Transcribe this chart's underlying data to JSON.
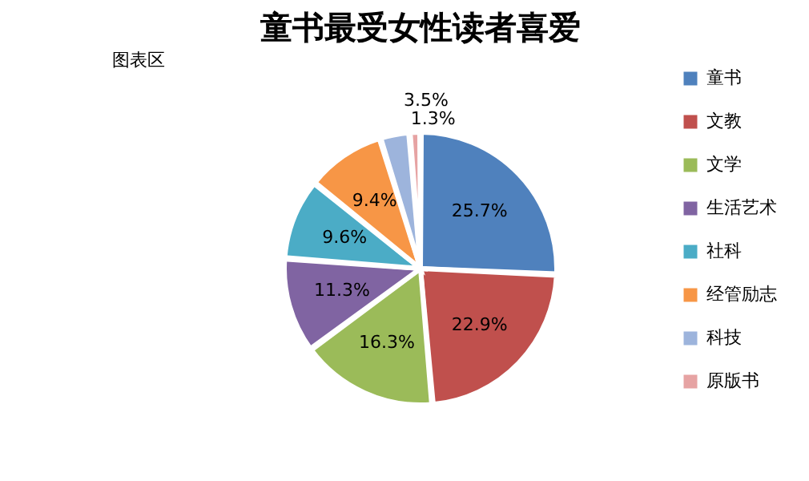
{
  "chart_data": {
    "type": "pie",
    "title": "童书最受女性读者喜爱",
    "categories": [
      "童书",
      "文教",
      "文学",
      "生活艺术",
      "社科",
      "经管励志",
      "科技",
      "原版书"
    ],
    "values": [
      25.7,
      22.9,
      16.3,
      11.3,
      9.6,
      9.4,
      3.5,
      1.3
    ],
    "value_labels": [
      "25.7%",
      "22.9%",
      "16.3%",
      "11.3%",
      "9.6%",
      "9.4%",
      "3.5%",
      "1.3%"
    ],
    "colors": [
      "#4f81bd",
      "#c0504d",
      "#9bbb59",
      "#8064a2",
      "#4bacc6",
      "#f79646",
      "#9db4dc",
      "#e6a3a3"
    ],
    "legend": "right",
    "annotations": [
      "图表区"
    ]
  }
}
